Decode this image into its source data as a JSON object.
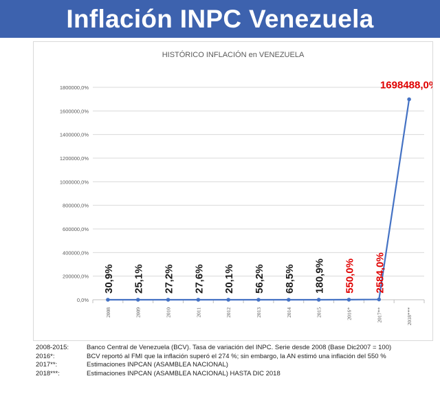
{
  "header": {
    "title": "Inflación INPC Venezuela"
  },
  "colors": {
    "header_bg": "#3d62ae",
    "line": "#4472c4",
    "highlight": "#e00000"
  },
  "chart_data": {
    "type": "line",
    "title": "HISTÓRICO INFLACIÓN en VENEZUELA",
    "xlabel": "",
    "ylabel": "",
    "categories": [
      "2008",
      "2009",
      "2010",
      "2011",
      "2012",
      "2013",
      "2014",
      "2015",
      "2016*",
      "2017**",
      "2018***"
    ],
    "series": [
      {
        "values": [
          30.9,
          25.1,
          27.2,
          27.6,
          20.1,
          56.2,
          68.5,
          180.9,
          550.0,
          2584.0,
          1698488.0
        ]
      }
    ],
    "data_labels": [
      "30,9%",
      "25,1%",
      "27,2%",
      "27,6%",
      "20,1%",
      "56,2%",
      "68,5%",
      "180,9%",
      "550,0%",
      "2584,0%",
      "1698488,0%"
    ],
    "highlighted": [
      false,
      false,
      false,
      false,
      false,
      false,
      false,
      false,
      true,
      true,
      true
    ],
    "yticks": [
      "0,0%",
      "200000,0%",
      "400000,0%",
      "600000,0%",
      "800000,0%",
      "1000000,0%",
      "1200000,0%",
      "1400000,0%",
      "1600000,0%",
      "1800000,0%"
    ],
    "ylim": [
      0,
      1800000
    ],
    "grid": true,
    "legend": "none"
  },
  "notes": [
    {
      "key": "2008-2015:",
      "text": "Banco Central de Venezuela (BCV). Tasa de variación del INPC. Serie desde 2008 (Base Dic2007 = 100)"
    },
    {
      "key": "2016*:",
      "text": "BCV reportó al FMI que la inflación superó el 274 %; sin embargo, la AN estimó una inflación del 550 %"
    },
    {
      "key": "2017**:",
      "text": "Estimaciones INPCAN (ASAMBLEA NACIONAL)"
    },
    {
      "key": "2018***:",
      "text": "Estimaciones INPCAN (ASAMBLEA NACIONAL) HASTA DIC 2018"
    }
  ]
}
